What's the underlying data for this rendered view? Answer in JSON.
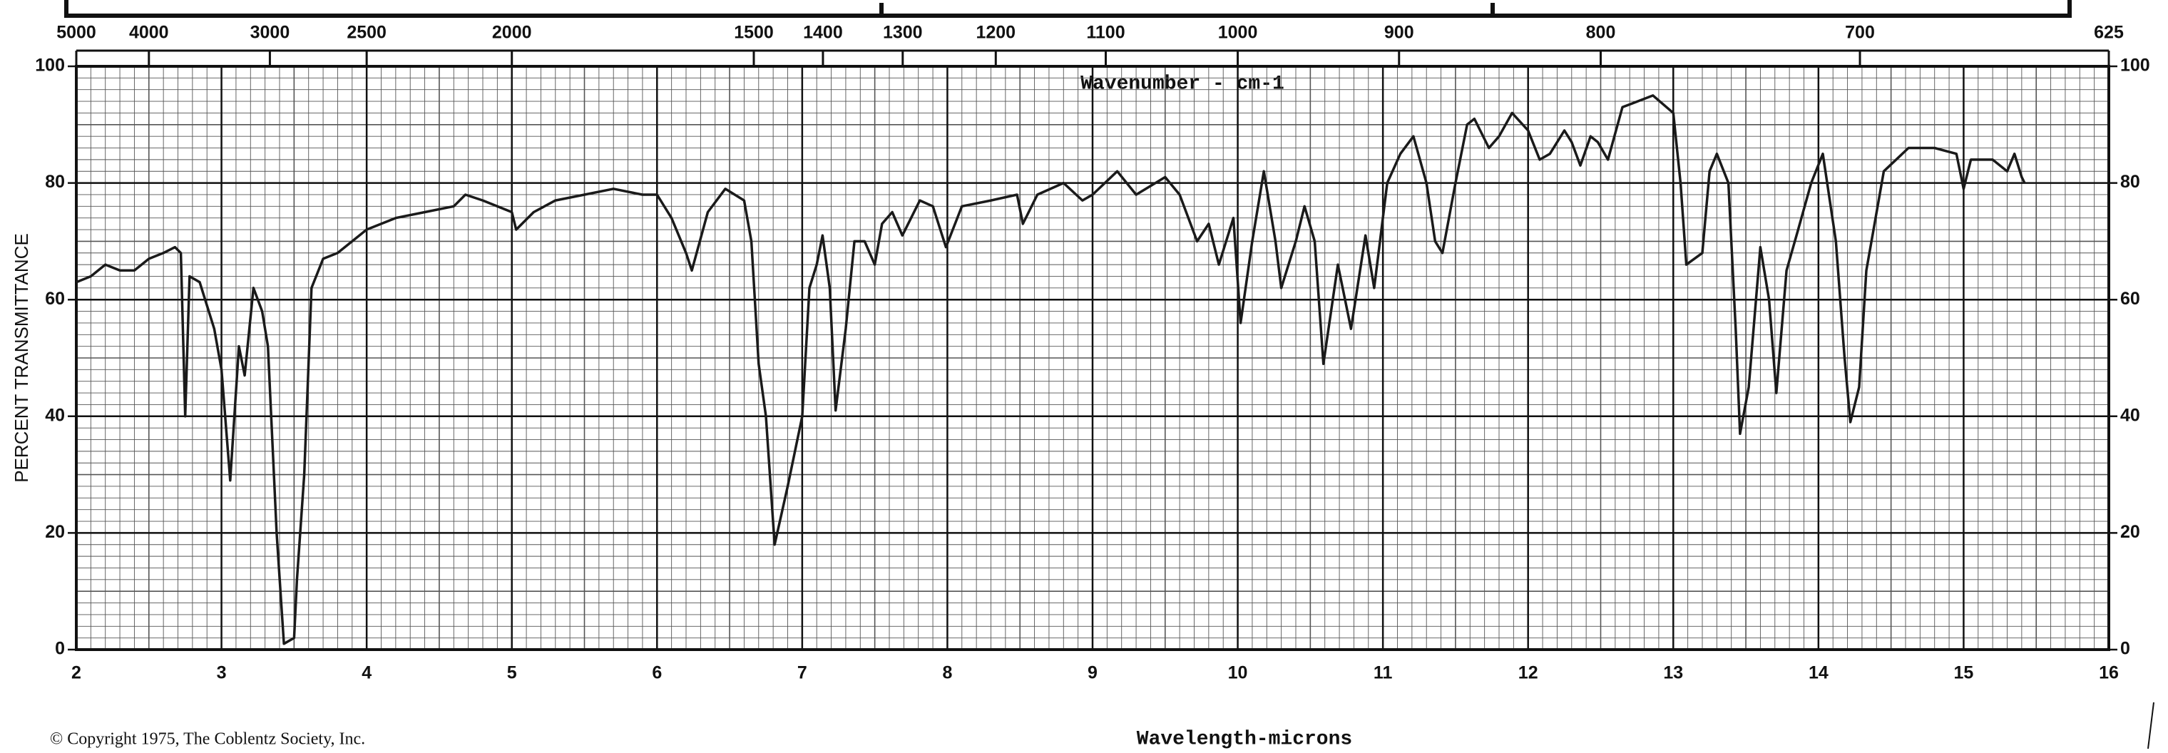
{
  "chart_data": {
    "type": "line",
    "title": "Wavenumber - cm-1",
    "x_label": "Wavelength-microns",
    "y_label": "PERCENT TRANSMITTANCE",
    "footnote": "© Copyright 1975, The Coblentz Society, Inc.",
    "color": "#1a1a1a",
    "grid": true,
    "xlim": [
      2,
      16
    ],
    "xticks": [
      2,
      3,
      4,
      5,
      6,
      7,
      8,
      9,
      10,
      11,
      12,
      13,
      14,
      15,
      16
    ],
    "ylim": [
      0,
      100
    ],
    "yticks": [
      0,
      20,
      40,
      60,
      80,
      100
    ],
    "x2lim": [
      5000,
      625
    ],
    "x2scale": "reciprocal",
    "x2ticks": [
      5000,
      4000,
      3000,
      2500,
      2000,
      1500,
      1400,
      1300,
      1200,
      1100,
      1000,
      900,
      800,
      700,
      625
    ],
    "x": [
      2.0,
      2.1,
      2.2,
      2.3,
      2.4,
      2.5,
      2.6,
      2.68,
      2.72,
      2.75,
      2.78,
      2.85,
      2.95,
      3.0,
      3.06,
      3.12,
      3.16,
      3.22,
      3.28,
      3.32,
      3.38,
      3.43,
      3.5,
      3.52,
      3.57,
      3.62,
      3.7,
      3.8,
      4.0,
      4.2,
      4.4,
      4.6,
      4.68,
      4.8,
      5.0,
      5.03,
      5.15,
      5.3,
      5.5,
      5.7,
      5.9,
      6.0,
      6.1,
      6.2,
      6.24,
      6.35,
      6.47,
      6.6,
      6.65,
      6.7,
      6.75,
      6.81,
      6.9,
      7.0,
      7.05,
      7.1,
      7.14,
      7.19,
      7.23,
      7.3,
      7.36,
      7.43,
      7.5,
      7.55,
      7.62,
      7.69,
      7.81,
      7.9,
      7.99,
      8.1,
      8.3,
      8.48,
      8.52,
      8.62,
      8.8,
      8.93,
      9.0,
      9.17,
      9.3,
      9.5,
      9.6,
      9.72,
      9.8,
      9.87,
      9.97,
      10.02,
      10.1,
      10.18,
      10.26,
      10.3,
      10.4,
      10.46,
      10.53,
      10.59,
      10.69,
      10.78,
      10.88,
      10.94,
      11.03,
      11.12,
      11.21,
      11.3,
      11.36,
      11.41,
      11.5,
      11.58,
      11.63,
      11.73,
      11.8,
      11.89,
      12.0,
      12.08,
      12.15,
      12.25,
      12.3,
      12.36,
      12.43,
      12.48,
      12.55,
      12.65,
      12.86,
      13.0,
      13.05,
      13.09,
      13.2,
      13.25,
      13.3,
      13.38,
      13.43,
      13.46,
      13.52,
      13.6,
      13.66,
      13.71,
      13.78,
      13.86,
      13.95,
      14.03,
      14.12,
      14.18,
      14.22,
      14.28,
      14.33,
      14.45,
      14.62,
      14.8,
      14.95,
      15.0,
      15.05,
      15.2,
      15.3,
      15.35,
      15.4,
      15.42
    ],
    "values": [
      63,
      64,
      66,
      65,
      65,
      67,
      68,
      69,
      68,
      40,
      64,
      63,
      55,
      48,
      29,
      52,
      47,
      62,
      58,
      52,
      20,
      1,
      2,
      12,
      30,
      62,
      67,
      68,
      72,
      74,
      75,
      76,
      78,
      77,
      75,
      72,
      75,
      77,
      78,
      79,
      78,
      78,
      74,
      68,
      65,
      75,
      79,
      77,
      70,
      49,
      40,
      18,
      28,
      40,
      62,
      66,
      71,
      62,
      41,
      55,
      70,
      70,
      66,
      73,
      75,
      71,
      77,
      76,
      69,
      76,
      77,
      78,
      73,
      78,
      80,
      77,
      78,
      82,
      78,
      81,
      78,
      70,
      73,
      66,
      74,
      56,
      70,
      82,
      70,
      62,
      70,
      76,
      70,
      49,
      66,
      55,
      71,
      62,
      80,
      85,
      88,
      80,
      70,
      68,
      80,
      90,
      91,
      86,
      88,
      92,
      89,
      84,
      85,
      89,
      87,
      83,
      88,
      87,
      84,
      93,
      95,
      92,
      80,
      66,
      68,
      82,
      85,
      80,
      55,
      37,
      45,
      69,
      60,
      44,
      65,
      72,
      80,
      85,
      70,
      50,
      39,
      45,
      65,
      82,
      86,
      86,
      85,
      79,
      84,
      84,
      82,
      85,
      81,
      80
    ]
  }
}
